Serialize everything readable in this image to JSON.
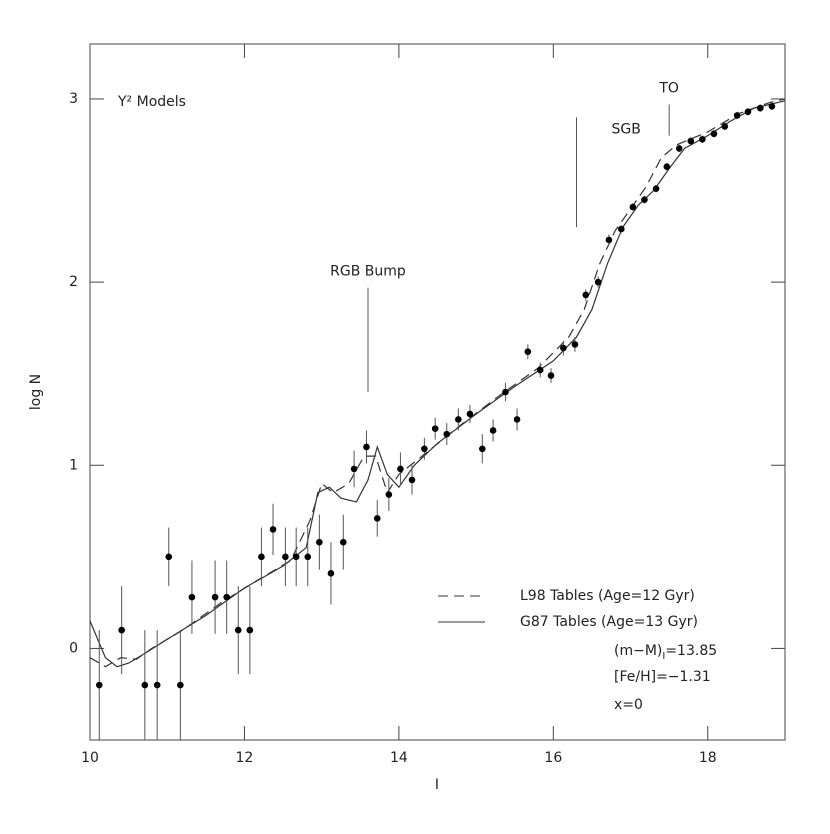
{
  "chart_data": {
    "type": "scatter",
    "title": "Y² Models",
    "x_label": "I",
    "y_label": "log N",
    "xlim": [
      10,
      19
    ],
    "ylim": [
      -0.5,
      3.3
    ],
    "xticks": [
      10,
      12,
      14,
      16,
      18
    ],
    "yticks": [
      0,
      1,
      2,
      3
    ],
    "series": [
      {
        "name": "L98 Tables (Age=12 Gyr)",
        "style": "dashed",
        "color": "#333333",
        "x": [
          10.0,
          10.2,
          10.4,
          10.6,
          10.8,
          11.2,
          11.7,
          12.2,
          12.6,
          12.85,
          13.0,
          13.15,
          13.35,
          13.55,
          13.7,
          13.85,
          14.0,
          14.3,
          14.8,
          15.3,
          15.8,
          16.2,
          16.4,
          16.6,
          16.8,
          17.0,
          17.2,
          17.4,
          17.6,
          18.0,
          18.4,
          18.8,
          19.0
        ],
        "values": [
          -0.05,
          -0.1,
          -0.05,
          -0.06,
          0.0,
          0.1,
          0.25,
          0.38,
          0.48,
          0.7,
          0.9,
          0.85,
          0.9,
          1.05,
          1.05,
          0.85,
          0.95,
          1.05,
          1.22,
          1.38,
          1.53,
          1.7,
          1.85,
          2.1,
          2.28,
          2.4,
          2.52,
          2.68,
          2.75,
          2.82,
          2.92,
          2.98,
          3.0
        ]
      },
      {
        "name": "G87 Tables (Age=13 Gyr)",
        "style": "solid",
        "color": "#333333",
        "x": [
          10.0,
          10.2,
          10.35,
          10.5,
          10.7,
          11.0,
          11.5,
          12.0,
          12.5,
          12.8,
          12.95,
          13.1,
          13.25,
          13.45,
          13.6,
          13.72,
          13.85,
          14.0,
          14.2,
          14.5,
          15.0,
          15.5,
          16.0,
          16.3,
          16.5,
          16.7,
          16.9,
          17.1,
          17.3,
          17.5,
          17.7,
          18.0,
          18.3,
          18.6,
          19.0
        ],
        "values": [
          0.15,
          -0.05,
          -0.1,
          -0.08,
          -0.03,
          0.05,
          0.18,
          0.33,
          0.45,
          0.55,
          0.85,
          0.88,
          0.82,
          0.8,
          0.92,
          1.1,
          0.95,
          0.88,
          1.0,
          1.12,
          1.28,
          1.43,
          1.57,
          1.7,
          1.85,
          2.1,
          2.3,
          2.42,
          2.5,
          2.62,
          2.73,
          2.8,
          2.88,
          2.95,
          2.99
        ]
      },
      {
        "style": "points",
        "color": "#000000",
        "x": [
          10.12,
          10.41,
          10.71,
          10.87,
          11.02,
          11.17,
          11.32,
          11.62,
          11.77,
          11.92,
          12.07,
          12.22,
          12.37,
          12.53,
          12.67,
          12.82,
          12.97,
          13.12,
          13.28,
          13.42,
          13.58,
          13.72,
          13.87,
          14.02,
          14.17,
          14.33,
          14.47,
          14.62,
          14.77,
          14.92,
          15.08,
          15.22,
          15.38,
          15.53,
          15.67,
          15.83,
          15.97,
          16.13,
          16.28,
          16.42,
          16.58,
          16.72,
          16.88,
          17.03,
          17.18,
          17.33,
          17.47,
          17.63,
          17.78,
          17.93,
          18.08,
          18.22,
          18.38,
          18.52,
          18.68,
          18.83
        ],
        "values": [
          -0.2,
          0.1,
          -0.2,
          -0.2,
          0.5,
          -0.2,
          0.28,
          0.28,
          0.28,
          0.1,
          0.1,
          0.5,
          0.65,
          0.5,
          0.5,
          0.5,
          0.58,
          0.41,
          0.58,
          0.98,
          1.1,
          0.71,
          0.84,
          0.98,
          0.92,
          1.09,
          1.2,
          1.17,
          1.25,
          1.28,
          1.09,
          1.19,
          1.4,
          1.25,
          1.62,
          1.52,
          1.49,
          1.64,
          1.66,
          1.93,
          2.0,
          2.23,
          2.29,
          2.41,
          2.45,
          2.51,
          2.63,
          2.73,
          2.77,
          2.78,
          2.81,
          2.85,
          2.91,
          2.93,
          2.95,
          2.96
        ],
        "errors": [
          0.3,
          0.24,
          0.3,
          0.3,
          0.16,
          0.3,
          0.2,
          0.2,
          0.2,
          0.24,
          0.24,
          0.16,
          0.14,
          0.16,
          0.16,
          0.16,
          0.15,
          0.17,
          0.15,
          0.1,
          0.09,
          0.1,
          0.09,
          0.09,
          0.08,
          0.06,
          0.06,
          0.06,
          0.06,
          0.05,
          0.08,
          0.06,
          0.05,
          0.06,
          0.04,
          0.04,
          0.04,
          0.04,
          0.04,
          0.03,
          0.03,
          0.03,
          0.02,
          0.02,
          0.02,
          0.02,
          0.02,
          0.02,
          0.02,
          0.02,
          0.02,
          0.02,
          0.02,
          0.02,
          0.02,
          0.02
        ]
      }
    ],
    "annotations": [
      {
        "text": "RGB Bump",
        "x": 13.6,
        "y": [
          1.4,
          1.97
        ]
      },
      {
        "text": "SGB",
        "x": 16.3,
        "y": [
          2.3,
          2.9
        ]
      },
      {
        "text": "TO",
        "x": 17.5,
        "y": [
          2.8,
          2.97
        ]
      }
    ],
    "notes": {
      "modulus": {
        "main": "(m−M)",
        "sub": "I",
        "rest": "=13.85"
      },
      "metallicity": "[Fe/H]=−1.31",
      "slope": "x=0"
    }
  }
}
